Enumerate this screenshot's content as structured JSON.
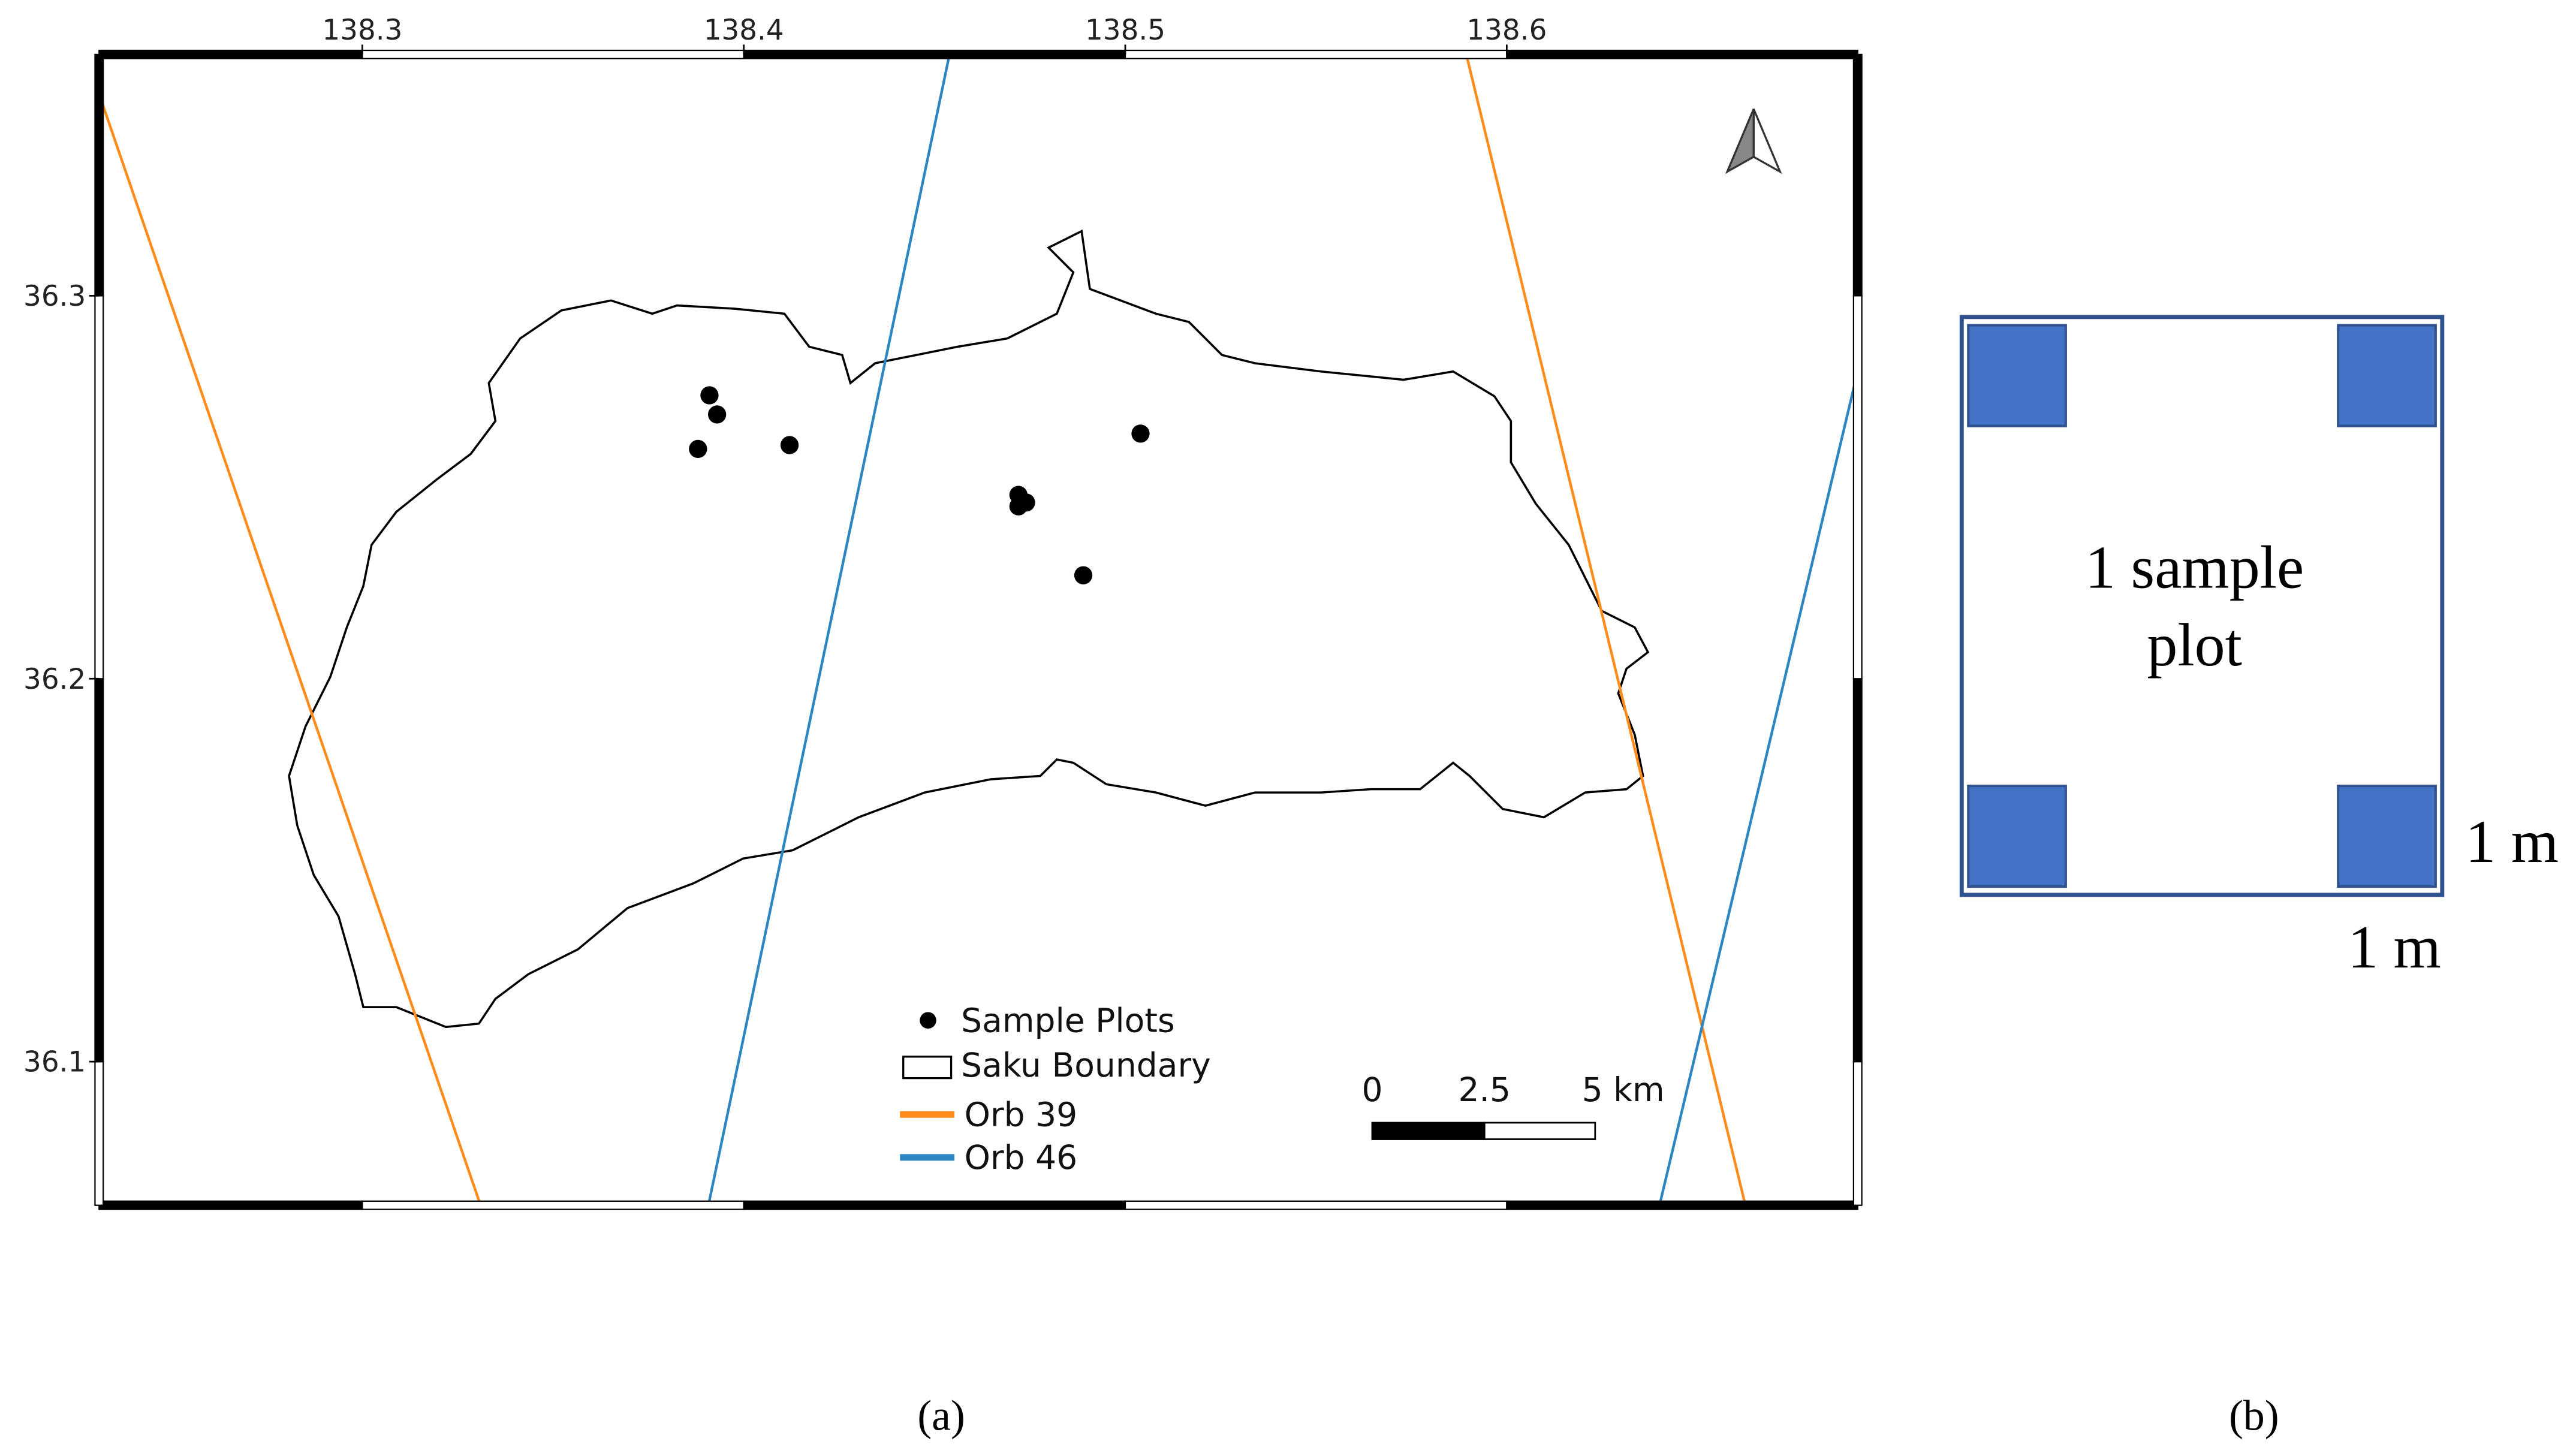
{
  "map": {
    "xlim": [
      138.231,
      138.692
    ],
    "ylim": [
      36.0625,
      36.363
    ],
    "xticks": [
      138.3,
      138.4,
      138.5,
      138.6
    ],
    "yticks": [
      36.1,
      36.2,
      36.3
    ],
    "sample_plots": {
      "lon": [
        138.391,
        138.393,
        138.388,
        138.412,
        138.504,
        138.472,
        138.474,
        138.472,
        138.489
      ],
      "lat": [
        36.274,
        36.269,
        36.26,
        36.261,
        36.264,
        36.248,
        36.246,
        36.245,
        36.227
      ]
    },
    "legend": [
      "Sample Plots",
      "Saku Boundary",
      "Orb 39",
      "Orb 46"
    ],
    "scale_bar": [
      "0",
      "2.5",
      "5 km"
    ],
    "panel_label": "(a)"
  },
  "plot_diagram": {
    "text": [
      "1 sample",
      "plot"
    ],
    "side_label": "1 m",
    "bottom_label": "1 m",
    "panel_label": "(b)"
  }
}
